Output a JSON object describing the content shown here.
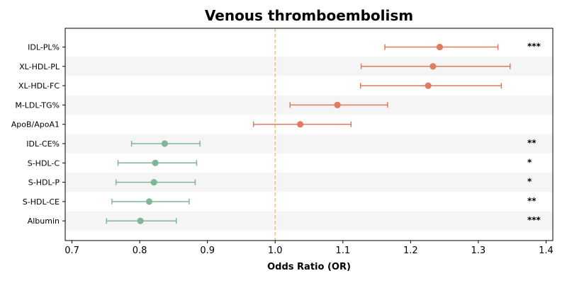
{
  "chart_data": {
    "type": "forest",
    "title": "Venous thromboembolism",
    "xlabel": "Odds Ratio (OR)",
    "ylabel": "",
    "xlim": [
      0.69,
      1.41
    ],
    "xticks": [
      "0.7",
      "0.8",
      "0.9",
      "1.0",
      "1.1",
      "1.2",
      "1.3",
      "1.4"
    ],
    "reference_line": 1.0,
    "grid": false,
    "alternating_row_shading": true,
    "colors": {
      "positive": "#e07b5f",
      "negative": "#7fb69a",
      "reference": "#f2c48d",
      "row_shade": "#f5f5f5"
    },
    "rows": [
      {
        "label": "IDL-PL%",
        "or": 1.243,
        "lower": 1.162,
        "upper": 1.329,
        "sig": "***",
        "group": "positive"
      },
      {
        "label": "XL-HDL-PL",
        "or": 1.233,
        "lower": 1.127,
        "upper": 1.347,
        "sig": "",
        "group": "positive"
      },
      {
        "label": "XL-HDL-FC",
        "or": 1.226,
        "lower": 1.126,
        "upper": 1.334,
        "sig": "",
        "group": "positive"
      },
      {
        "label": "M-LDL-TG%",
        "or": 1.092,
        "lower": 1.022,
        "upper": 1.166,
        "sig": "",
        "group": "positive"
      },
      {
        "label": "ApoB/ApoA1",
        "or": 1.037,
        "lower": 0.968,
        "upper": 1.112,
        "sig": "",
        "group": "positive"
      },
      {
        "label": "IDL-CE%",
        "or": 0.837,
        "lower": 0.788,
        "upper": 0.889,
        "sig": "**",
        "group": "negative"
      },
      {
        "label": "S-HDL-C",
        "or": 0.823,
        "lower": 0.768,
        "upper": 0.884,
        "sig": "*",
        "group": "negative"
      },
      {
        "label": "S-HDL-P",
        "or": 0.821,
        "lower": 0.765,
        "upper": 0.882,
        "sig": "*",
        "group": "negative"
      },
      {
        "label": "S-HDL-CE",
        "or": 0.814,
        "lower": 0.759,
        "upper": 0.873,
        "sig": "**",
        "group": "negative"
      },
      {
        "label": "Albumin",
        "or": 0.801,
        "lower": 0.751,
        "upper": 0.854,
        "sig": "***",
        "group": "negative"
      }
    ]
  }
}
